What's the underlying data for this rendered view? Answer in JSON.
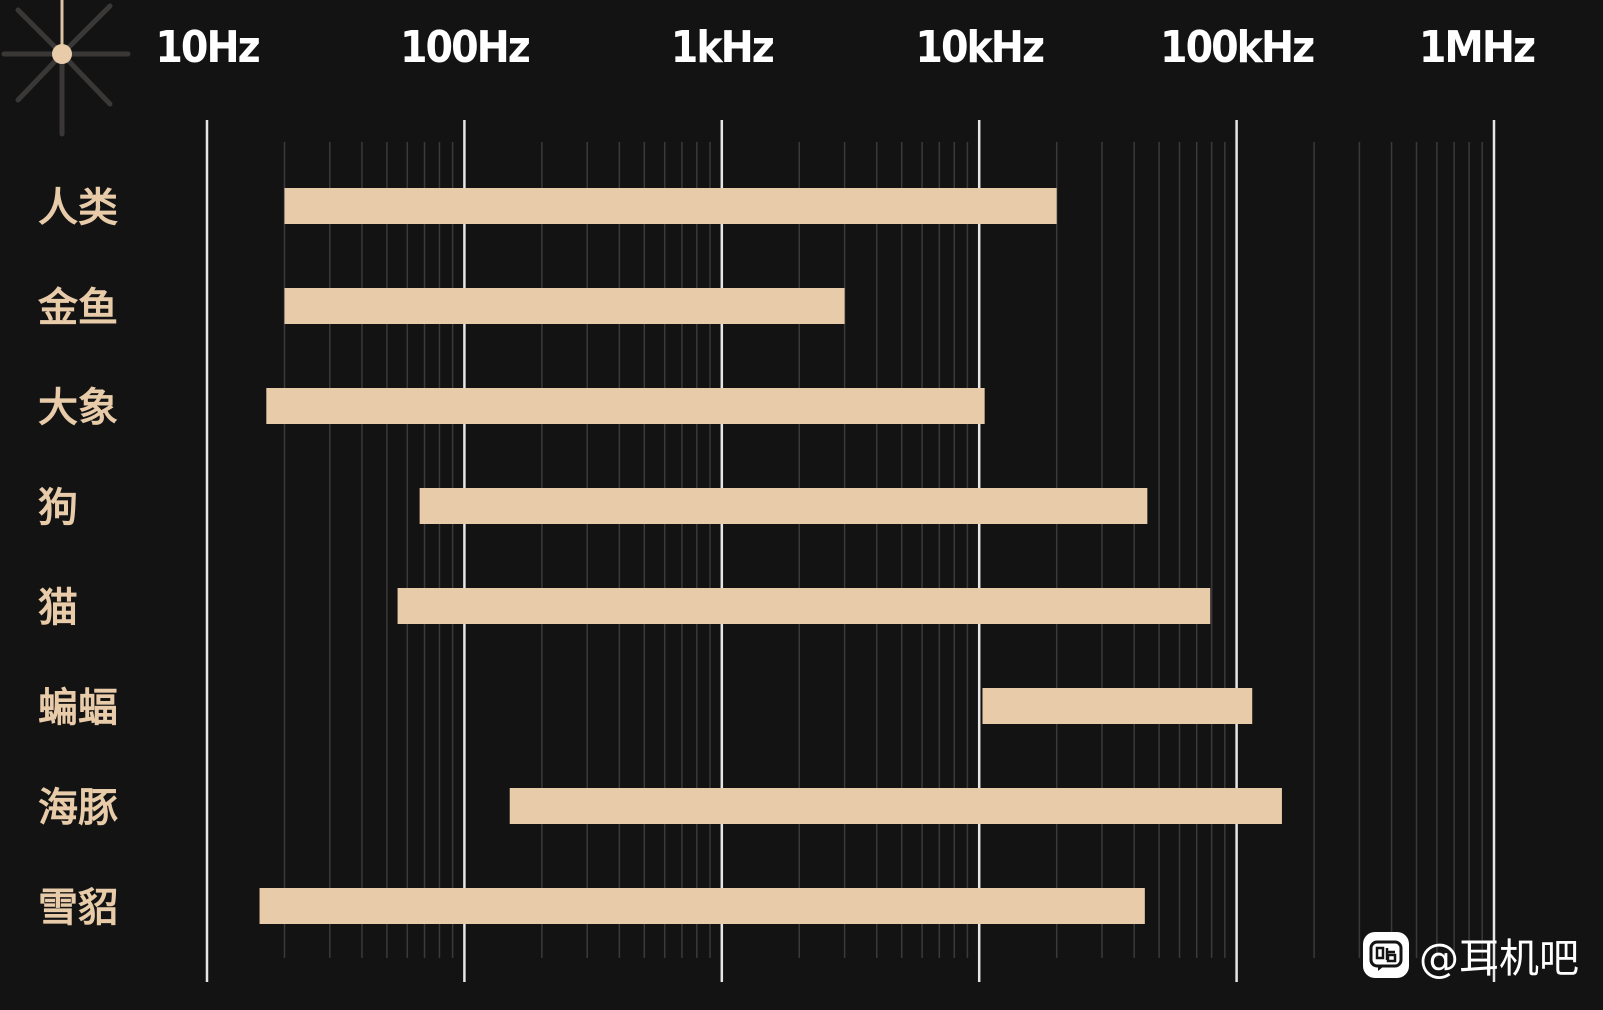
{
  "chart_data": {
    "type": "bar",
    "orientation": "horizontal",
    "x_scale": "log",
    "xlim": [
      10,
      1000000
    ],
    "xticks": [
      10,
      100,
      1000,
      10000,
      100000,
      1000000
    ],
    "tick_labels": [
      "10Hz",
      "100Hz",
      "1kHz",
      "10kHz",
      "100kHz",
      "1MHz"
    ],
    "grid": true,
    "categories": [
      "人类",
      "金鱼",
      "大象",
      "狗",
      "猫",
      "蝙蝠",
      "海豚",
      "雪貂"
    ],
    "ranges": [
      [
        20,
        20000
      ],
      [
        20,
        3000
      ],
      [
        17,
        10500
      ],
      [
        67,
        45000
      ],
      [
        55,
        79000
      ],
      [
        10300,
        115000
      ],
      [
        150,
        150000
      ],
      [
        16,
        44000
      ]
    ]
  },
  "colors": {
    "background": "#141313",
    "bar": "#e8ccaa",
    "label": "#e8ccaa",
    "major_grid": "#e6e6e6",
    "minor_grid": "#3a3a3a"
  },
  "watermark": {
    "icon": "tieba-icon",
    "text": "@耳机吧"
  }
}
